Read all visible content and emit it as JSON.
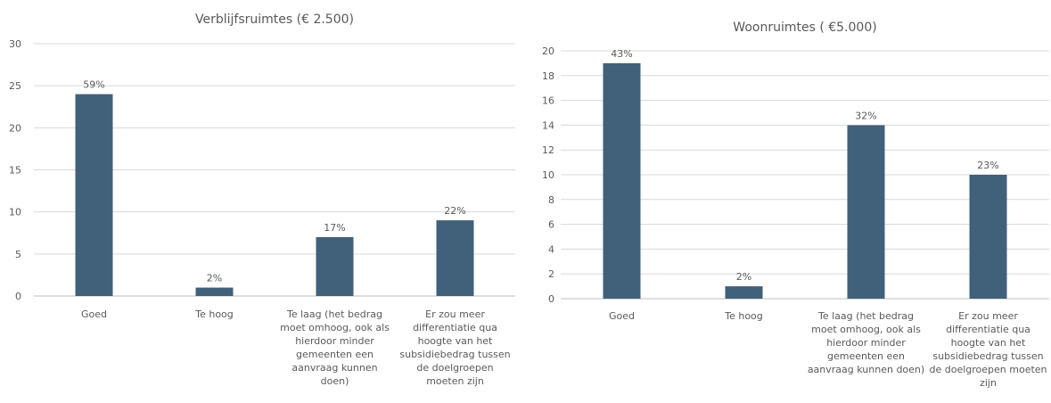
{
  "chart_data": [
    {
      "type": "bar",
      "title": "Verblijfsruimtes (€ 2.500)",
      "categories": [
        [
          "Goed"
        ],
        [
          "Te hoog"
        ],
        [
          "Te laag (het bedrag",
          "moet omhoog, ook als",
          "hierdoor minder",
          "gemeenten een",
          "aanvraag kunnen",
          "doen)"
        ],
        [
          "Er zou meer",
          "differentiatie qua",
          "hoogte van het",
          "subsidiebedrag tussen",
          "de doelgroepen",
          "moeten zijn"
        ]
      ],
      "values": [
        24,
        1,
        7,
        9
      ],
      "data_labels": [
        "59%",
        "2%",
        "17%",
        "22%"
      ],
      "ylim": [
        0,
        30
      ],
      "yticks": [
        0,
        5,
        10,
        15,
        20,
        25,
        30
      ],
      "grid": true,
      "bar_color": "#41607a"
    },
    {
      "type": "bar",
      "title": "Woonruimtes ( €5.000)",
      "categories": [
        [
          "Goed"
        ],
        [
          "Te hoog"
        ],
        [
          "Te laag (het bedrag",
          "moet omhoog, ook als",
          "hierdoor minder",
          "gemeenten een",
          "aanvraag kunnen doen)"
        ],
        [
          "Er zou meer",
          "differentiatie qua",
          "hoogte van het",
          "subsidiebedrag tussen",
          "de doelgroepen moeten",
          "zijn"
        ]
      ],
      "values": [
        19,
        1,
        14,
        10
      ],
      "data_labels": [
        "43%",
        "2%",
        "32%",
        "23%"
      ],
      "ylim": [
        0,
        20
      ],
      "yticks": [
        0,
        2,
        4,
        6,
        8,
        10,
        12,
        14,
        16,
        18,
        20
      ],
      "grid": true,
      "bar_color": "#41607a"
    }
  ]
}
